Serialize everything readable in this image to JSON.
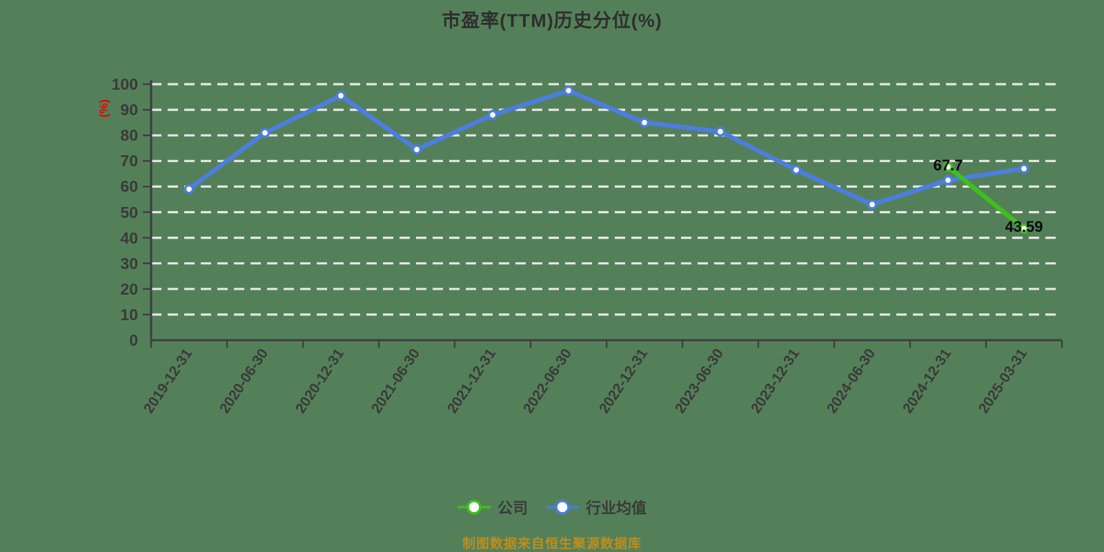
{
  "title": "市盈率(TTM)历史分位(%)",
  "y_axis": {
    "unit_label": "(%)",
    "ticks": [
      0,
      10,
      20,
      30,
      40,
      50,
      60,
      70,
      80,
      90,
      100
    ]
  },
  "chart_data": {
    "type": "line",
    "title": "市盈率(TTM)历史分位(%)",
    "categories": [
      "2019-12-31",
      "2020-06-30",
      "2020-12-31",
      "2021-06-30",
      "2021-12-31",
      "2022-06-30",
      "2022-12-31",
      "2023-06-30",
      "2023-12-31",
      "2024-06-30",
      "2024-12-31",
      "2025-03-31"
    ],
    "series": [
      {
        "name": "公司",
        "color": "#3ec01c",
        "values": [
          null,
          null,
          null,
          null,
          null,
          null,
          null,
          null,
          null,
          null,
          67.7,
          43.59
        ],
        "point_labels": {
          "10": "67.7",
          "11": "43.59"
        }
      },
      {
        "name": "行业均值",
        "color": "#4c7ee0",
        "values": [
          59,
          81,
          95.5,
          74.5,
          88,
          97.5,
          85,
          81.5,
          66.5,
          53,
          62.5,
          67
        ]
      }
    ],
    "ylim": [
      0,
      100
    ],
    "ylabel": "(%)",
    "grid": "horizontal-dashed",
    "legend_position": "bottom"
  },
  "legend": {
    "items": [
      {
        "label": "公司",
        "color": "#3ec01c"
      },
      {
        "label": "行业均值",
        "color": "#4c7ee0"
      }
    ]
  },
  "footer": {
    "source_note": "制图数据来自恒生聚源数据库"
  },
  "colors": {
    "background": "#548059",
    "axis": "#3e3e3e",
    "grid": "#e7e7e7",
    "tick_text": "#3a3a3a",
    "title_text": "#2e2e2e",
    "unit_label": "#e60000",
    "point_label": "#0a0a0a",
    "source_note": "#bd8e1e",
    "marker_fill": "#ffffff"
  }
}
